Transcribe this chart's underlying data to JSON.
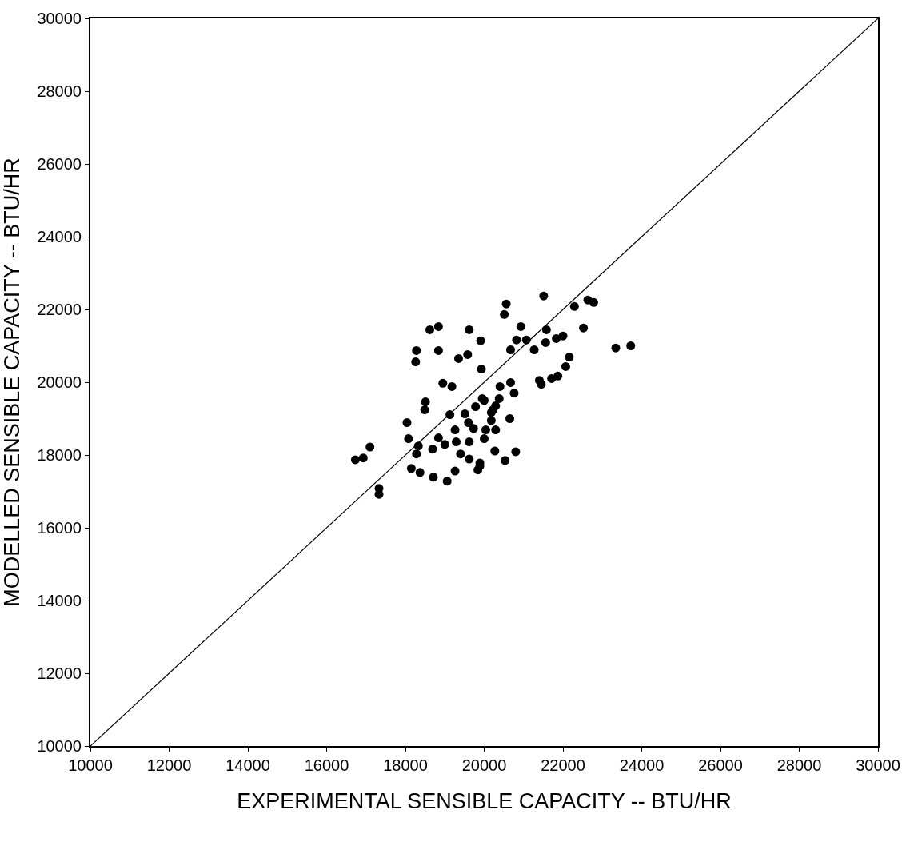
{
  "chart_data": {
    "type": "scatter",
    "xlabel": "EXPERIMENTAL SENSIBLE CAPACITY -- BTU/HR",
    "ylabel": "MODELLED SENSIBLE CAPACITY -- BTU/HR",
    "xlim": [
      10000,
      30000
    ],
    "ylim": [
      10000,
      30000
    ],
    "xticks": [
      10000,
      12000,
      14000,
      16000,
      18000,
      20000,
      22000,
      24000,
      26000,
      28000,
      30000
    ],
    "yticks": [
      10000,
      12000,
      14000,
      16000,
      18000,
      20000,
      22000,
      24000,
      26000,
      28000,
      30000
    ],
    "series": [
      {
        "marker": "circle",
        "color": "#000000",
        "x": [
          18620,
          18840,
          19620,
          19910,
          18280,
          18260,
          18840,
          19350,
          19580,
          19930,
          18950,
          19180,
          18510,
          18490,
          18040,
          19130,
          18080,
          17100,
          16930,
          16730,
          18330,
          18280,
          18690,
          18840,
          19000,
          19260,
          19290,
          19400,
          19620,
          19620,
          19890,
          19840,
          19260,
          18710,
          19060,
          18150,
          18370,
          17330,
          17330,
          19510,
          19780,
          19950,
          19600,
          19730,
          20040,
          20180,
          20000,
          20270,
          20220,
          21510,
          20560,
          20510,
          22630,
          22780,
          22290,
          20930,
          21580,
          22520,
          20820,
          21070,
          20670,
          21270,
          21560,
          21830,
          22000,
          23340,
          23720,
          22160,
          22070,
          21400,
          21450,
          21710,
          21870,
          20400,
          20670,
          20760,
          20380,
          20290,
          20180,
          20000,
          20650,
          20290,
          20530,
          20800,
          19890
        ],
        "values": [
          21440,
          21530,
          21440,
          21140,
          20870,
          20560,
          20870,
          20650,
          20760,
          20360,
          19970,
          19880,
          19460,
          19240,
          18890,
          19110,
          18450,
          18220,
          17920,
          17870,
          18250,
          18030,
          18160,
          18470,
          18290,
          18690,
          18360,
          18030,
          18360,
          17890,
          17780,
          17590,
          17560,
          17390,
          17280,
          17630,
          17520,
          16920,
          17080,
          19130,
          19330,
          19550,
          18890,
          18730,
          18690,
          18950,
          18450,
          18110,
          19240,
          22370,
          22150,
          21860,
          22260,
          22190,
          22080,
          21530,
          21440,
          21490,
          21160,
          21160,
          20890,
          20890,
          21090,
          21200,
          21270,
          20940,
          21000,
          20690,
          20430,
          20050,
          19940,
          20100,
          20170,
          19880,
          19990,
          19700,
          19550,
          19350,
          19170,
          19500,
          19000,
          18690,
          17850,
          18090,
          17700
        ]
      },
      {
        "type": "line",
        "color": "#000000",
        "line_style": "solid",
        "x": [
          10000,
          30000
        ],
        "values": [
          10000,
          30000
        ]
      }
    ]
  }
}
